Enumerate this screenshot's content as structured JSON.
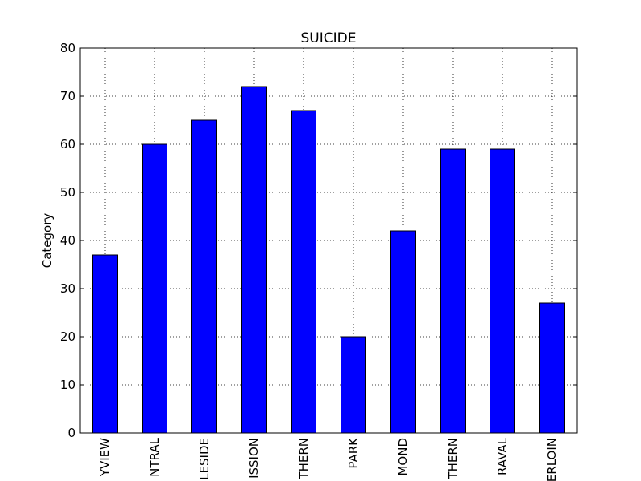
{
  "chart_data": {
    "type": "bar",
    "title": "SUICIDE",
    "y_label": "Category",
    "categories": [
      "YVIEW",
      "NTRAL",
      "LESIDE",
      "ISSION",
      "THERN",
      "PARK",
      "MOND",
      "THERN",
      "RAVAL",
      "ERLOIN"
    ],
    "values": [
      37,
      60,
      65,
      72,
      67,
      20,
      42,
      59,
      59,
      27
    ],
    "color": "#0000ff",
    "ylim": [
      0,
      80
    ],
    "yticks": [
      0,
      10,
      20,
      30,
      40,
      50,
      60,
      70,
      80
    ],
    "grid": true
  }
}
